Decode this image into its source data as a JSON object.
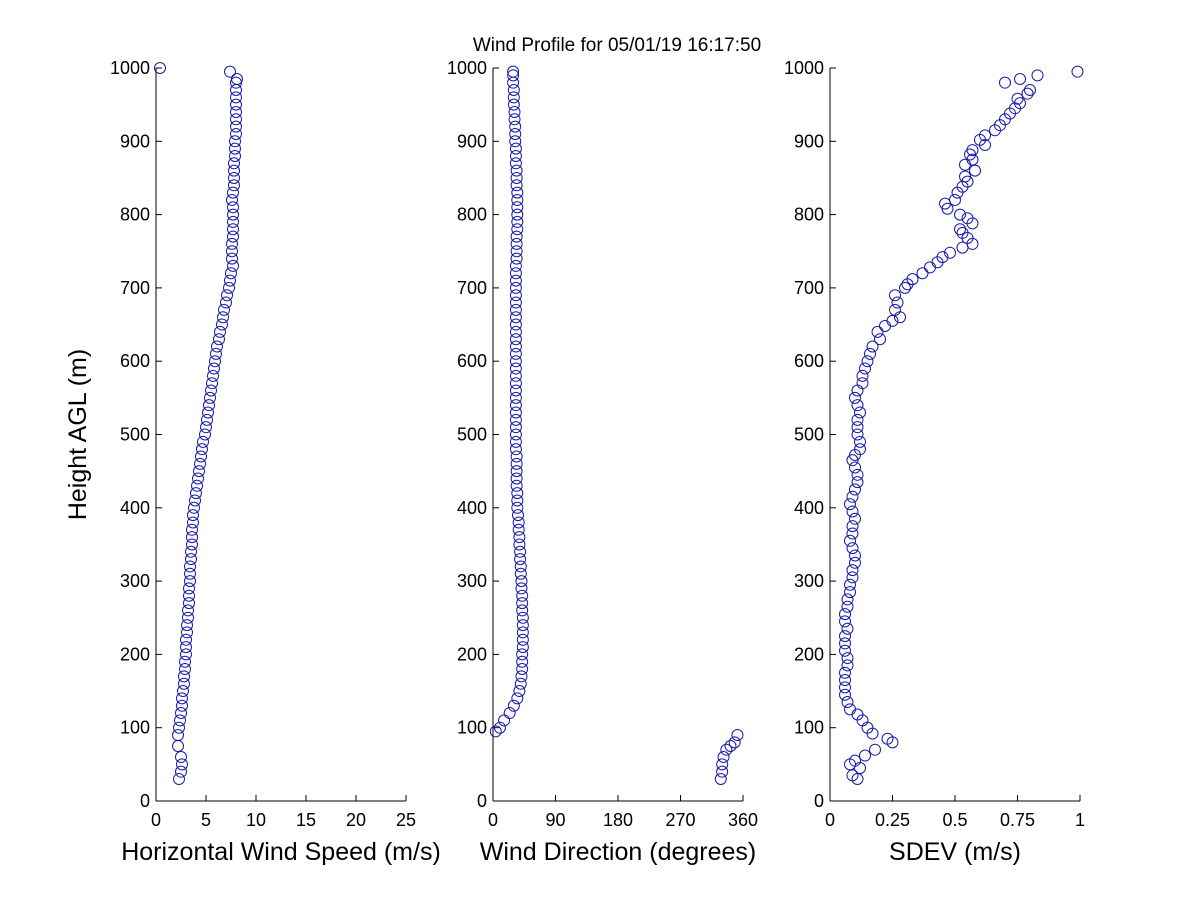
{
  "title": "Wind Profile for  05/01/19 16:17:50",
  "colors": {
    "marker": "#1a1aa8",
    "axis": "#000000",
    "background": "#ffffff"
  },
  "chart_data": [
    {
      "type": "scatter",
      "name": "speed",
      "xlabel": "Horizontal Wind Speed (m/s)",
      "ylabel": "Height AGL (m)",
      "xlim": [
        0,
        25
      ],
      "ylim": [
        0,
        1000
      ],
      "xticks": [
        "0",
        "5",
        "10",
        "15",
        "20",
        "25"
      ],
      "yticks": [
        "0",
        "100",
        "200",
        "300",
        "400",
        "500",
        "600",
        "700",
        "800",
        "900",
        "1000"
      ],
      "points": [
        [
          2.3,
          30
        ],
        [
          2.5,
          40
        ],
        [
          2.6,
          50
        ],
        [
          2.5,
          60
        ],
        [
          2.2,
          75
        ],
        [
          2.2,
          90
        ],
        [
          2.3,
          100
        ],
        [
          2.4,
          110
        ],
        [
          2.5,
          120
        ],
        [
          2.6,
          130
        ],
        [
          2.6,
          140
        ],
        [
          2.7,
          150
        ],
        [
          2.8,
          160
        ],
        [
          2.8,
          170
        ],
        [
          2.9,
          180
        ],
        [
          2.9,
          190
        ],
        [
          3.0,
          200
        ],
        [
          3.0,
          210
        ],
        [
          3.0,
          220
        ],
        [
          3.1,
          230
        ],
        [
          3.1,
          240
        ],
        [
          3.2,
          250
        ],
        [
          3.2,
          260
        ],
        [
          3.3,
          270
        ],
        [
          3.3,
          280
        ],
        [
          3.3,
          290
        ],
        [
          3.4,
          300
        ],
        [
          3.4,
          310
        ],
        [
          3.4,
          320
        ],
        [
          3.5,
          330
        ],
        [
          3.5,
          340
        ],
        [
          3.6,
          350
        ],
        [
          3.6,
          360
        ],
        [
          3.6,
          370
        ],
        [
          3.7,
          380
        ],
        [
          3.7,
          390
        ],
        [
          3.8,
          400
        ],
        [
          3.9,
          410
        ],
        [
          4.0,
          420
        ],
        [
          4.1,
          430
        ],
        [
          4.2,
          440
        ],
        [
          4.3,
          450
        ],
        [
          4.4,
          460
        ],
        [
          4.5,
          470
        ],
        [
          4.6,
          480
        ],
        [
          4.7,
          490
        ],
        [
          4.9,
          500
        ],
        [
          5.0,
          510
        ],
        [
          5.1,
          520
        ],
        [
          5.2,
          530
        ],
        [
          5.3,
          540
        ],
        [
          5.4,
          550
        ],
        [
          5.5,
          560
        ],
        [
          5.6,
          570
        ],
        [
          5.7,
          580
        ],
        [
          5.8,
          590
        ],
        [
          5.9,
          600
        ],
        [
          6.0,
          610
        ],
        [
          6.1,
          620
        ],
        [
          6.3,
          630
        ],
        [
          6.4,
          640
        ],
        [
          6.6,
          650
        ],
        [
          6.7,
          660
        ],
        [
          6.8,
          670
        ],
        [
          7.0,
          680
        ],
        [
          7.1,
          690
        ],
        [
          7.3,
          700
        ],
        [
          7.4,
          710
        ],
        [
          7.5,
          720
        ],
        [
          7.7,
          730
        ],
        [
          7.6,
          740
        ],
        [
          7.6,
          750
        ],
        [
          7.6,
          760
        ],
        [
          7.7,
          770
        ],
        [
          7.7,
          780
        ],
        [
          7.7,
          790
        ],
        [
          7.7,
          800
        ],
        [
          7.7,
          810
        ],
        [
          7.6,
          820
        ],
        [
          7.7,
          830
        ],
        [
          7.8,
          840
        ],
        [
          7.8,
          850
        ],
        [
          7.8,
          860
        ],
        [
          7.8,
          870
        ],
        [
          7.9,
          880
        ],
        [
          7.9,
          890
        ],
        [
          7.9,
          900
        ],
        [
          8.0,
          910
        ],
        [
          8.0,
          920
        ],
        [
          8.0,
          930
        ],
        [
          8.0,
          940
        ],
        [
          8.0,
          950
        ],
        [
          8.0,
          960
        ],
        [
          8.0,
          970
        ],
        [
          8.0,
          980
        ],
        [
          8.1,
          985
        ],
        [
          7.4,
          995
        ],
        [
          0.4,
          1000
        ]
      ]
    },
    {
      "type": "scatter",
      "name": "direction",
      "xlabel": "Wind Direction (degrees)",
      "xlim": [
        0,
        360
      ],
      "ylim": [
        0,
        1000
      ],
      "xticks": [
        "0",
        "90",
        "180",
        "270",
        "360"
      ],
      "yticks": [
        "0",
        "100",
        "200",
        "300",
        "400",
        "500",
        "600",
        "700",
        "800",
        "900",
        "1000"
      ],
      "points": [
        [
          328,
          30
        ],
        [
          330,
          40
        ],
        [
          330,
          50
        ],
        [
          332,
          60
        ],
        [
          336,
          70
        ],
        [
          342,
          75
        ],
        [
          348,
          80
        ],
        [
          352,
          90
        ],
        [
          4,
          95
        ],
        [
          10,
          100
        ],
        [
          16,
          110
        ],
        [
          24,
          120
        ],
        [
          30,
          130
        ],
        [
          35,
          140
        ],
        [
          38,
          150
        ],
        [
          40,
          160
        ],
        [
          41,
          170
        ],
        [
          42,
          180
        ],
        [
          42,
          190
        ],
        [
          42,
          200
        ],
        [
          43,
          210
        ],
        [
          43,
          220
        ],
        [
          43,
          230
        ],
        [
          43,
          240
        ],
        [
          43,
          250
        ],
        [
          42,
          260
        ],
        [
          42,
          270
        ],
        [
          42,
          280
        ],
        [
          41,
          290
        ],
        [
          41,
          300
        ],
        [
          40,
          310
        ],
        [
          40,
          320
        ],
        [
          39,
          330
        ],
        [
          39,
          340
        ],
        [
          38,
          350
        ],
        [
          38,
          360
        ],
        [
          37,
          370
        ],
        [
          37,
          380
        ],
        [
          36,
          390
        ],
        [
          35,
          400
        ],
        [
          35,
          410
        ],
        [
          35,
          420
        ],
        [
          34,
          430
        ],
        [
          34,
          440
        ],
        [
          34,
          450
        ],
        [
          34,
          460
        ],
        [
          34,
          470
        ],
        [
          33,
          480
        ],
        [
          33,
          490
        ],
        [
          33,
          500
        ],
        [
          33,
          510
        ],
        [
          33,
          520
        ],
        [
          33,
          530
        ],
        [
          33,
          540
        ],
        [
          33,
          550
        ],
        [
          33,
          560
        ],
        [
          33,
          570
        ],
        [
          33,
          580
        ],
        [
          33,
          590
        ],
        [
          33,
          600
        ],
        [
          33,
          610
        ],
        [
          33,
          620
        ],
        [
          33,
          630
        ],
        [
          33,
          640
        ],
        [
          33,
          650
        ],
        [
          33,
          660
        ],
        [
          33,
          670
        ],
        [
          33,
          680
        ],
        [
          33,
          690
        ],
        [
          33,
          700
        ],
        [
          33,
          710
        ],
        [
          33,
          720
        ],
        [
          33,
          730
        ],
        [
          34,
          740
        ],
        [
          34,
          750
        ],
        [
          34,
          760
        ],
        [
          34,
          770
        ],
        [
          35,
          780
        ],
        [
          35,
          790
        ],
        [
          35,
          800
        ],
        [
          35,
          810
        ],
        [
          35,
          820
        ],
        [
          35,
          830
        ],
        [
          34,
          840
        ],
        [
          34,
          850
        ],
        [
          34,
          860
        ],
        [
          33,
          870
        ],
        [
          33,
          880
        ],
        [
          33,
          890
        ],
        [
          32,
          900
        ],
        [
          32,
          910
        ],
        [
          32,
          920
        ],
        [
          31,
          930
        ],
        [
          31,
          940
        ],
        [
          30,
          950
        ],
        [
          30,
          960
        ],
        [
          30,
          970
        ],
        [
          29,
          980
        ],
        [
          29,
          990
        ],
        [
          29,
          995
        ]
      ]
    },
    {
      "type": "scatter",
      "name": "sdev",
      "xlabel": "SDEV  (m/s)",
      "xlim": [
        0,
        1
      ],
      "ylim": [
        0,
        1000
      ],
      "xticks": [
        "0",
        "0.25",
        "0.5",
        "0.75",
        "1"
      ],
      "yticks": [
        "0",
        "100",
        "200",
        "300",
        "400",
        "500",
        "600",
        "700",
        "800",
        "900",
        "1000"
      ],
      "points": [
        [
          0.11,
          30
        ],
        [
          0.09,
          35
        ],
        [
          0.12,
          45
        ],
        [
          0.08,
          50
        ],
        [
          0.1,
          55
        ],
        [
          0.14,
          62
        ],
        [
          0.18,
          70
        ],
        [
          0.25,
          80
        ],
        [
          0.23,
          85
        ],
        [
          0.17,
          92
        ],
        [
          0.15,
          100
        ],
        [
          0.13,
          110
        ],
        [
          0.11,
          118
        ],
        [
          0.08,
          125
        ],
        [
          0.07,
          135
        ],
        [
          0.06,
          145
        ],
        [
          0.06,
          155
        ],
        [
          0.06,
          165
        ],
        [
          0.06,
          175
        ],
        [
          0.07,
          185
        ],
        [
          0.07,
          195
        ],
        [
          0.06,
          205
        ],
        [
          0.06,
          215
        ],
        [
          0.06,
          225
        ],
        [
          0.07,
          235
        ],
        [
          0.06,
          245
        ],
        [
          0.06,
          255
        ],
        [
          0.07,
          265
        ],
        [
          0.07,
          275
        ],
        [
          0.08,
          285
        ],
        [
          0.08,
          295
        ],
        [
          0.09,
          305
        ],
        [
          0.09,
          315
        ],
        [
          0.1,
          325
        ],
        [
          0.1,
          335
        ],
        [
          0.09,
          345
        ],
        [
          0.08,
          355
        ],
        [
          0.09,
          365
        ],
        [
          0.09,
          375
        ],
        [
          0.1,
          385
        ],
        [
          0.09,
          395
        ],
        [
          0.08,
          405
        ],
        [
          0.09,
          415
        ],
        [
          0.1,
          425
        ],
        [
          0.11,
          435
        ],
        [
          0.11,
          445
        ],
        [
          0.1,
          455
        ],
        [
          0.09,
          465
        ],
        [
          0.1,
          472
        ],
        [
          0.12,
          480
        ],
        [
          0.12,
          490
        ],
        [
          0.11,
          500
        ],
        [
          0.11,
          510
        ],
        [
          0.11,
          520
        ],
        [
          0.12,
          530
        ],
        [
          0.11,
          540
        ],
        [
          0.1,
          550
        ],
        [
          0.11,
          560
        ],
        [
          0.13,
          570
        ],
        [
          0.13,
          580
        ],
        [
          0.14,
          590
        ],
        [
          0.15,
          600
        ],
        [
          0.16,
          610
        ],
        [
          0.17,
          620
        ],
        [
          0.2,
          630
        ],
        [
          0.19,
          640
        ],
        [
          0.22,
          648
        ],
        [
          0.25,
          655
        ],
        [
          0.28,
          660
        ],
        [
          0.26,
          670
        ],
        [
          0.27,
          680
        ],
        [
          0.26,
          690
        ],
        [
          0.3,
          700
        ],
        [
          0.31,
          705
        ],
        [
          0.33,
          712
        ],
        [
          0.37,
          720
        ],
        [
          0.4,
          728
        ],
        [
          0.43,
          735
        ],
        [
          0.45,
          742
        ],
        [
          0.48,
          748
        ],
        [
          0.53,
          755
        ],
        [
          0.57,
          760
        ],
        [
          0.55,
          768
        ],
        [
          0.53,
          775
        ],
        [
          0.52,
          780
        ],
        [
          0.57,
          788
        ],
        [
          0.55,
          795
        ],
        [
          0.52,
          800
        ],
        [
          0.47,
          808
        ],
        [
          0.46,
          815
        ],
        [
          0.5,
          820
        ],
        [
          0.51,
          830
        ],
        [
          0.53,
          838
        ],
        [
          0.55,
          845
        ],
        [
          0.54,
          852
        ],
        [
          0.58,
          860
        ],
        [
          0.54,
          868
        ],
        [
          0.57,
          875
        ],
        [
          0.56,
          882
        ],
        [
          0.57,
          888
        ],
        [
          0.62,
          895
        ],
        [
          0.6,
          902
        ],
        [
          0.62,
          908
        ],
        [
          0.66,
          915
        ],
        [
          0.68,
          922
        ],
        [
          0.7,
          930
        ],
        [
          0.72,
          938
        ],
        [
          0.74,
          945
        ],
        [
          0.76,
          952
        ],
        [
          0.75,
          958
        ],
        [
          0.79,
          965
        ],
        [
          0.8,
          970
        ],
        [
          0.7,
          980
        ],
        [
          0.76,
          985
        ],
        [
          0.83,
          990
        ],
        [
          0.99,
          995
        ]
      ]
    }
  ]
}
